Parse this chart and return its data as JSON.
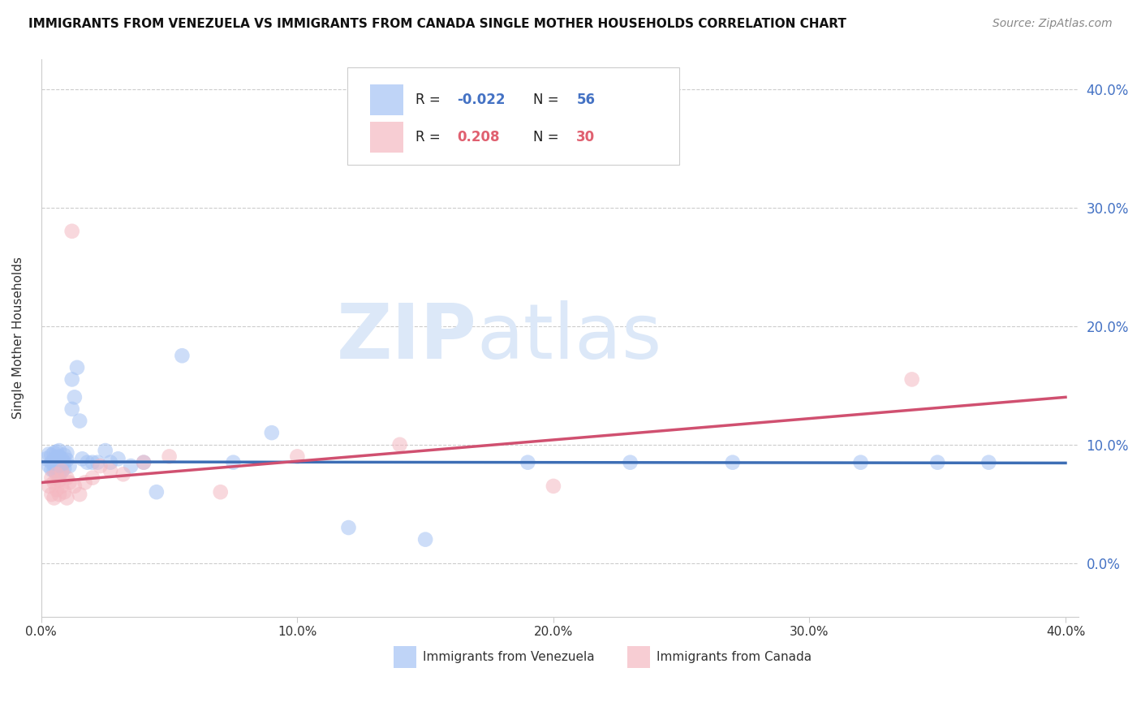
{
  "title": "IMMIGRANTS FROM VENEZUELA VS IMMIGRANTS FROM CANADA SINGLE MOTHER HOUSEHOLDS CORRELATION CHART",
  "source": "Source: ZipAtlas.com",
  "ylabel": "Single Mother Households",
  "legend_labels": [
    "Immigrants from Venezuela",
    "Immigrants from Canada"
  ],
  "blue_color": "#a4c2f4",
  "pink_color": "#f4b8c1",
  "blue_line_color": "#3d6eb5",
  "pink_line_color": "#d05070",
  "blue_text_color": "#4472c4",
  "pink_text_color": "#e06070",
  "right_axis_color": "#4472c4",
  "watermark_color": "#dce8f8",
  "xlim": [
    0.0,
    0.405
  ],
  "ylim": [
    -0.045,
    0.425
  ],
  "yticks": [
    0.0,
    0.1,
    0.2,
    0.3,
    0.4
  ],
  "xticks": [
    0.0,
    0.1,
    0.2,
    0.3,
    0.4
  ],
  "ven_x": [
    0.002,
    0.003,
    0.003,
    0.004,
    0.004,
    0.004,
    0.005,
    0.005,
    0.005,
    0.005,
    0.005,
    0.006,
    0.006,
    0.006,
    0.006,
    0.006,
    0.007,
    0.007,
    0.007,
    0.007,
    0.007,
    0.008,
    0.008,
    0.008,
    0.009,
    0.009,
    0.009,
    0.01,
    0.01,
    0.011,
    0.012,
    0.012,
    0.013,
    0.014,
    0.015,
    0.016,
    0.018,
    0.02,
    0.022,
    0.025,
    0.027,
    0.03,
    0.035,
    0.04,
    0.045,
    0.055,
    0.075,
    0.09,
    0.12,
    0.15,
    0.19,
    0.23,
    0.27,
    0.32,
    0.35,
    0.37
  ],
  "ven_y": [
    0.088,
    0.082,
    0.092,
    0.079,
    0.085,
    0.091,
    0.078,
    0.083,
    0.087,
    0.093,
    0.086,
    0.08,
    0.084,
    0.089,
    0.094,
    0.076,
    0.081,
    0.086,
    0.09,
    0.095,
    0.075,
    0.083,
    0.088,
    0.077,
    0.085,
    0.091,
    0.08,
    0.087,
    0.093,
    0.082,
    0.13,
    0.155,
    0.14,
    0.165,
    0.12,
    0.088,
    0.085,
    0.085,
    0.085,
    0.095,
    0.085,
    0.088,
    0.082,
    0.085,
    0.06,
    0.175,
    0.085,
    0.11,
    0.03,
    0.02,
    0.085,
    0.085,
    0.085,
    0.085,
    0.085,
    0.085
  ],
  "can_x": [
    0.003,
    0.004,
    0.004,
    0.005,
    0.005,
    0.006,
    0.006,
    0.007,
    0.007,
    0.008,
    0.008,
    0.009,
    0.01,
    0.01,
    0.011,
    0.012,
    0.013,
    0.015,
    0.017,
    0.02,
    0.023,
    0.027,
    0.032,
    0.04,
    0.05,
    0.07,
    0.1,
    0.14,
    0.2,
    0.34
  ],
  "can_y": [
    0.065,
    0.058,
    0.072,
    0.055,
    0.068,
    0.062,
    0.075,
    0.058,
    0.07,
    0.065,
    0.078,
    0.06,
    0.072,
    0.055,
    0.068,
    0.28,
    0.065,
    0.058,
    0.068,
    0.072,
    0.082,
    0.078,
    0.075,
    0.085,
    0.09,
    0.06,
    0.09,
    0.1,
    0.065,
    0.155
  ],
  "blue_line_y0": 0.0855,
  "blue_line_y1": 0.0845,
  "pink_line_y0": 0.068,
  "pink_line_y1": 0.14
}
